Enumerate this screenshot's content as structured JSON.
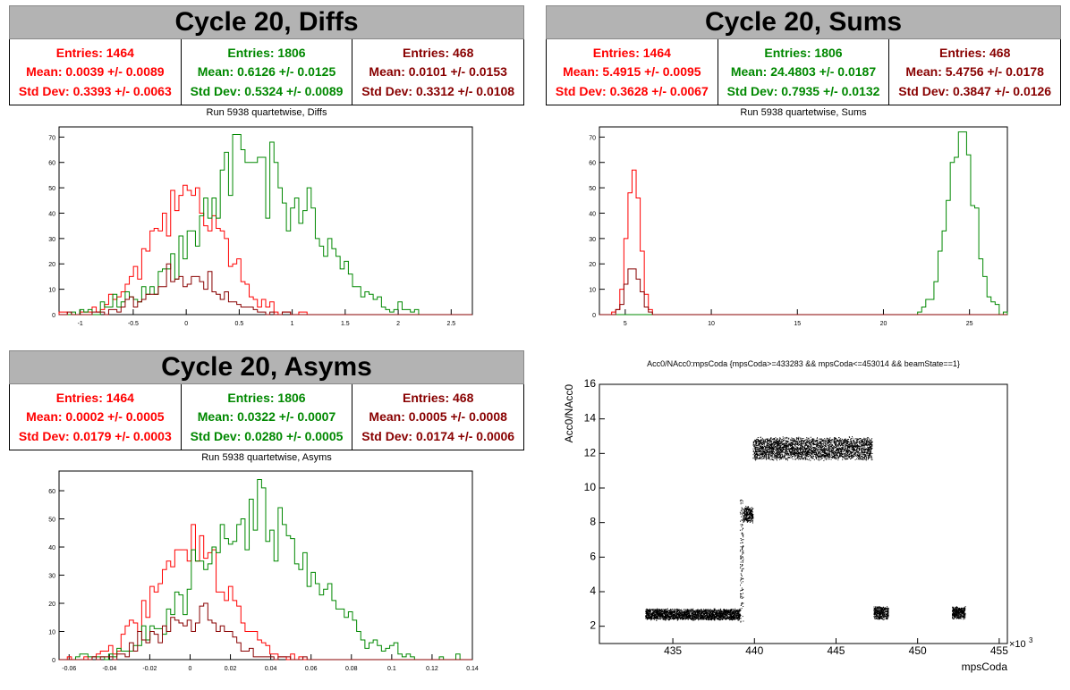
{
  "panels": {
    "diffs": {
      "title": "Cycle 20, Diffs",
      "subtitle": "Run 5938 quartetwise, Diffs",
      "stats": [
        {
          "entries": "Entries: 1464",
          "mean": "Mean: 0.0039 +/- 0.0089",
          "std": "Std Dev: 0.3393 +/- 0.0063"
        },
        {
          "entries": "Entries: 1806",
          "mean": "Mean: 0.6126 +/- 0.0125",
          "std": "Std Dev: 0.5324 +/- 0.0089"
        },
        {
          "entries": "Entries: 468",
          "mean": "Mean: 0.0101 +/- 0.0153",
          "std": "Std Dev: 0.3312 +/- 0.0108"
        }
      ]
    },
    "sums": {
      "title": "Cycle 20, Sums",
      "subtitle": "Run 5938 quartetwise, Sums",
      "stats": [
        {
          "entries": "Entries: 1464",
          "mean": "Mean: 5.4915 +/- 0.0095",
          "std": "Std Dev: 0.3628 +/- 0.0067"
        },
        {
          "entries": "Entries: 1806",
          "mean": "Mean: 24.4803 +/- 0.0187",
          "std": "Std Dev: 0.7935 +/- 0.0132"
        },
        {
          "entries": "Entries: 468",
          "mean": "Mean: 5.4756 +/- 0.0178",
          "std": "Std Dev: 0.3847 +/- 0.0126"
        }
      ]
    },
    "asyms": {
      "title": "Cycle 20, Asyms",
      "subtitle": "Run 5938 quartetwise, Asyms",
      "stats": [
        {
          "entries": "Entries: 1464",
          "mean": "Mean: 0.0002 +/- 0.0005",
          "std": "Std Dev: 0.0179 +/- 0.0003"
        },
        {
          "entries": "Entries: 1806",
          "mean": "Mean: 0.0322 +/- 0.0007",
          "std": "Std Dev: 0.0280 +/- 0.0005"
        },
        {
          "entries": "Entries: 468",
          "mean": "Mean: 0.0005 +/- 0.0008",
          "std": "Std Dev: 0.0174 +/- 0.0006"
        }
      ]
    },
    "scatter": {
      "title": "Acc0/NAcc0:mpsCoda {mpsCoda>=433283 && mpsCoda<=453014 && beamState==1}",
      "ylabel": "Acc0/NAcc0",
      "xlabel": "mpsCoda",
      "xexp": "×10",
      "xexp_sup": "3"
    }
  },
  "colors": {
    "red": "#ff0000",
    "green": "#008800",
    "dark": "#880000"
  },
  "chart_data": [
    {
      "type": "bar",
      "name": "diffs-histogram",
      "xlim": [
        -1.2,
        2.7
      ],
      "ylim": [
        0,
        74
      ],
      "xticks": [
        -1,
        -0.5,
        0,
        0.5,
        1,
        1.5,
        2,
        2.5
      ],
      "yticks": [
        0,
        10,
        20,
        30,
        40,
        50,
        60,
        70
      ],
      "series": [
        {
          "color": "#ff0000",
          "entries": 1464,
          "mean": 0.0039,
          "std": 0.3393,
          "peak": 51
        },
        {
          "color": "#008800",
          "entries": 1806,
          "mean": 0.6126,
          "std": 0.5324,
          "peak": 71
        },
        {
          "color": "#880000",
          "entries": 468,
          "mean": 0.0101,
          "std": 0.3312,
          "peak": 20
        }
      ]
    },
    {
      "type": "bar",
      "name": "sums-histogram",
      "xlim": [
        3.5,
        27.2
      ],
      "ylim": [
        0,
        74
      ],
      "xticks": [
        5,
        10,
        15,
        20,
        25
      ],
      "yticks": [
        0,
        10,
        20,
        30,
        40,
        50,
        60,
        70
      ],
      "series": [
        {
          "color": "#ff0000",
          "entries": 1464,
          "mean": 5.4915,
          "std": 0.3628,
          "peak": 57
        },
        {
          "color": "#008800",
          "entries": 1806,
          "mean": 24.4803,
          "std": 0.7935,
          "peak": 72
        },
        {
          "color": "#880000",
          "entries": 468,
          "mean": 5.4756,
          "std": 0.3847,
          "peak": 18
        }
      ]
    },
    {
      "type": "bar",
      "name": "asyms-histogram",
      "xlim": [
        -0.065,
        0.14
      ],
      "ylim": [
        0,
        67
      ],
      "xticks": [
        -0.06,
        -0.04,
        -0.02,
        0,
        0.02,
        0.04,
        0.06,
        0.08,
        0.1,
        0.12,
        0.14
      ],
      "yticks": [
        0,
        10,
        20,
        30,
        40,
        50,
        60
      ],
      "series": [
        {
          "color": "#ff0000",
          "entries": 1464,
          "mean": 0.0002,
          "std": 0.0179,
          "peak": 48
        },
        {
          "color": "#008800",
          "entries": 1806,
          "mean": 0.0322,
          "std": 0.028,
          "peak": 64
        },
        {
          "color": "#880000",
          "entries": 468,
          "mean": 0.0005,
          "std": 0.0174,
          "peak": 20
        }
      ]
    },
    {
      "type": "scatter",
      "name": "acc0-vs-mpscoda",
      "xlim": [
        430.5,
        455.5
      ],
      "ylim": [
        1,
        16
      ],
      "xticks": [
        435,
        440,
        445,
        450,
        455
      ],
      "yticks": [
        2,
        4,
        6,
        8,
        10,
        12,
        14,
        16
      ],
      "clusters": [
        {
          "x": [
            433.3,
            439.1
          ],
          "ycenter": 2.7,
          "yspread": 0.35
        },
        {
          "x": [
            439.1,
            439.3
          ],
          "ycenter": 6.0,
          "yspread": 4.0
        },
        {
          "x": [
            439.3,
            439.9
          ],
          "ycenter": 8.5,
          "yspread": 0.5
        },
        {
          "x": [
            439.9,
            447.2
          ],
          "ycenter": 12.3,
          "yspread": 0.7
        },
        {
          "x": [
            447.3,
            448.2
          ],
          "ycenter": 2.8,
          "yspread": 0.4
        },
        {
          "x": [
            452.1,
            452.9
          ],
          "ycenter": 2.8,
          "yspread": 0.4
        }
      ]
    }
  ]
}
